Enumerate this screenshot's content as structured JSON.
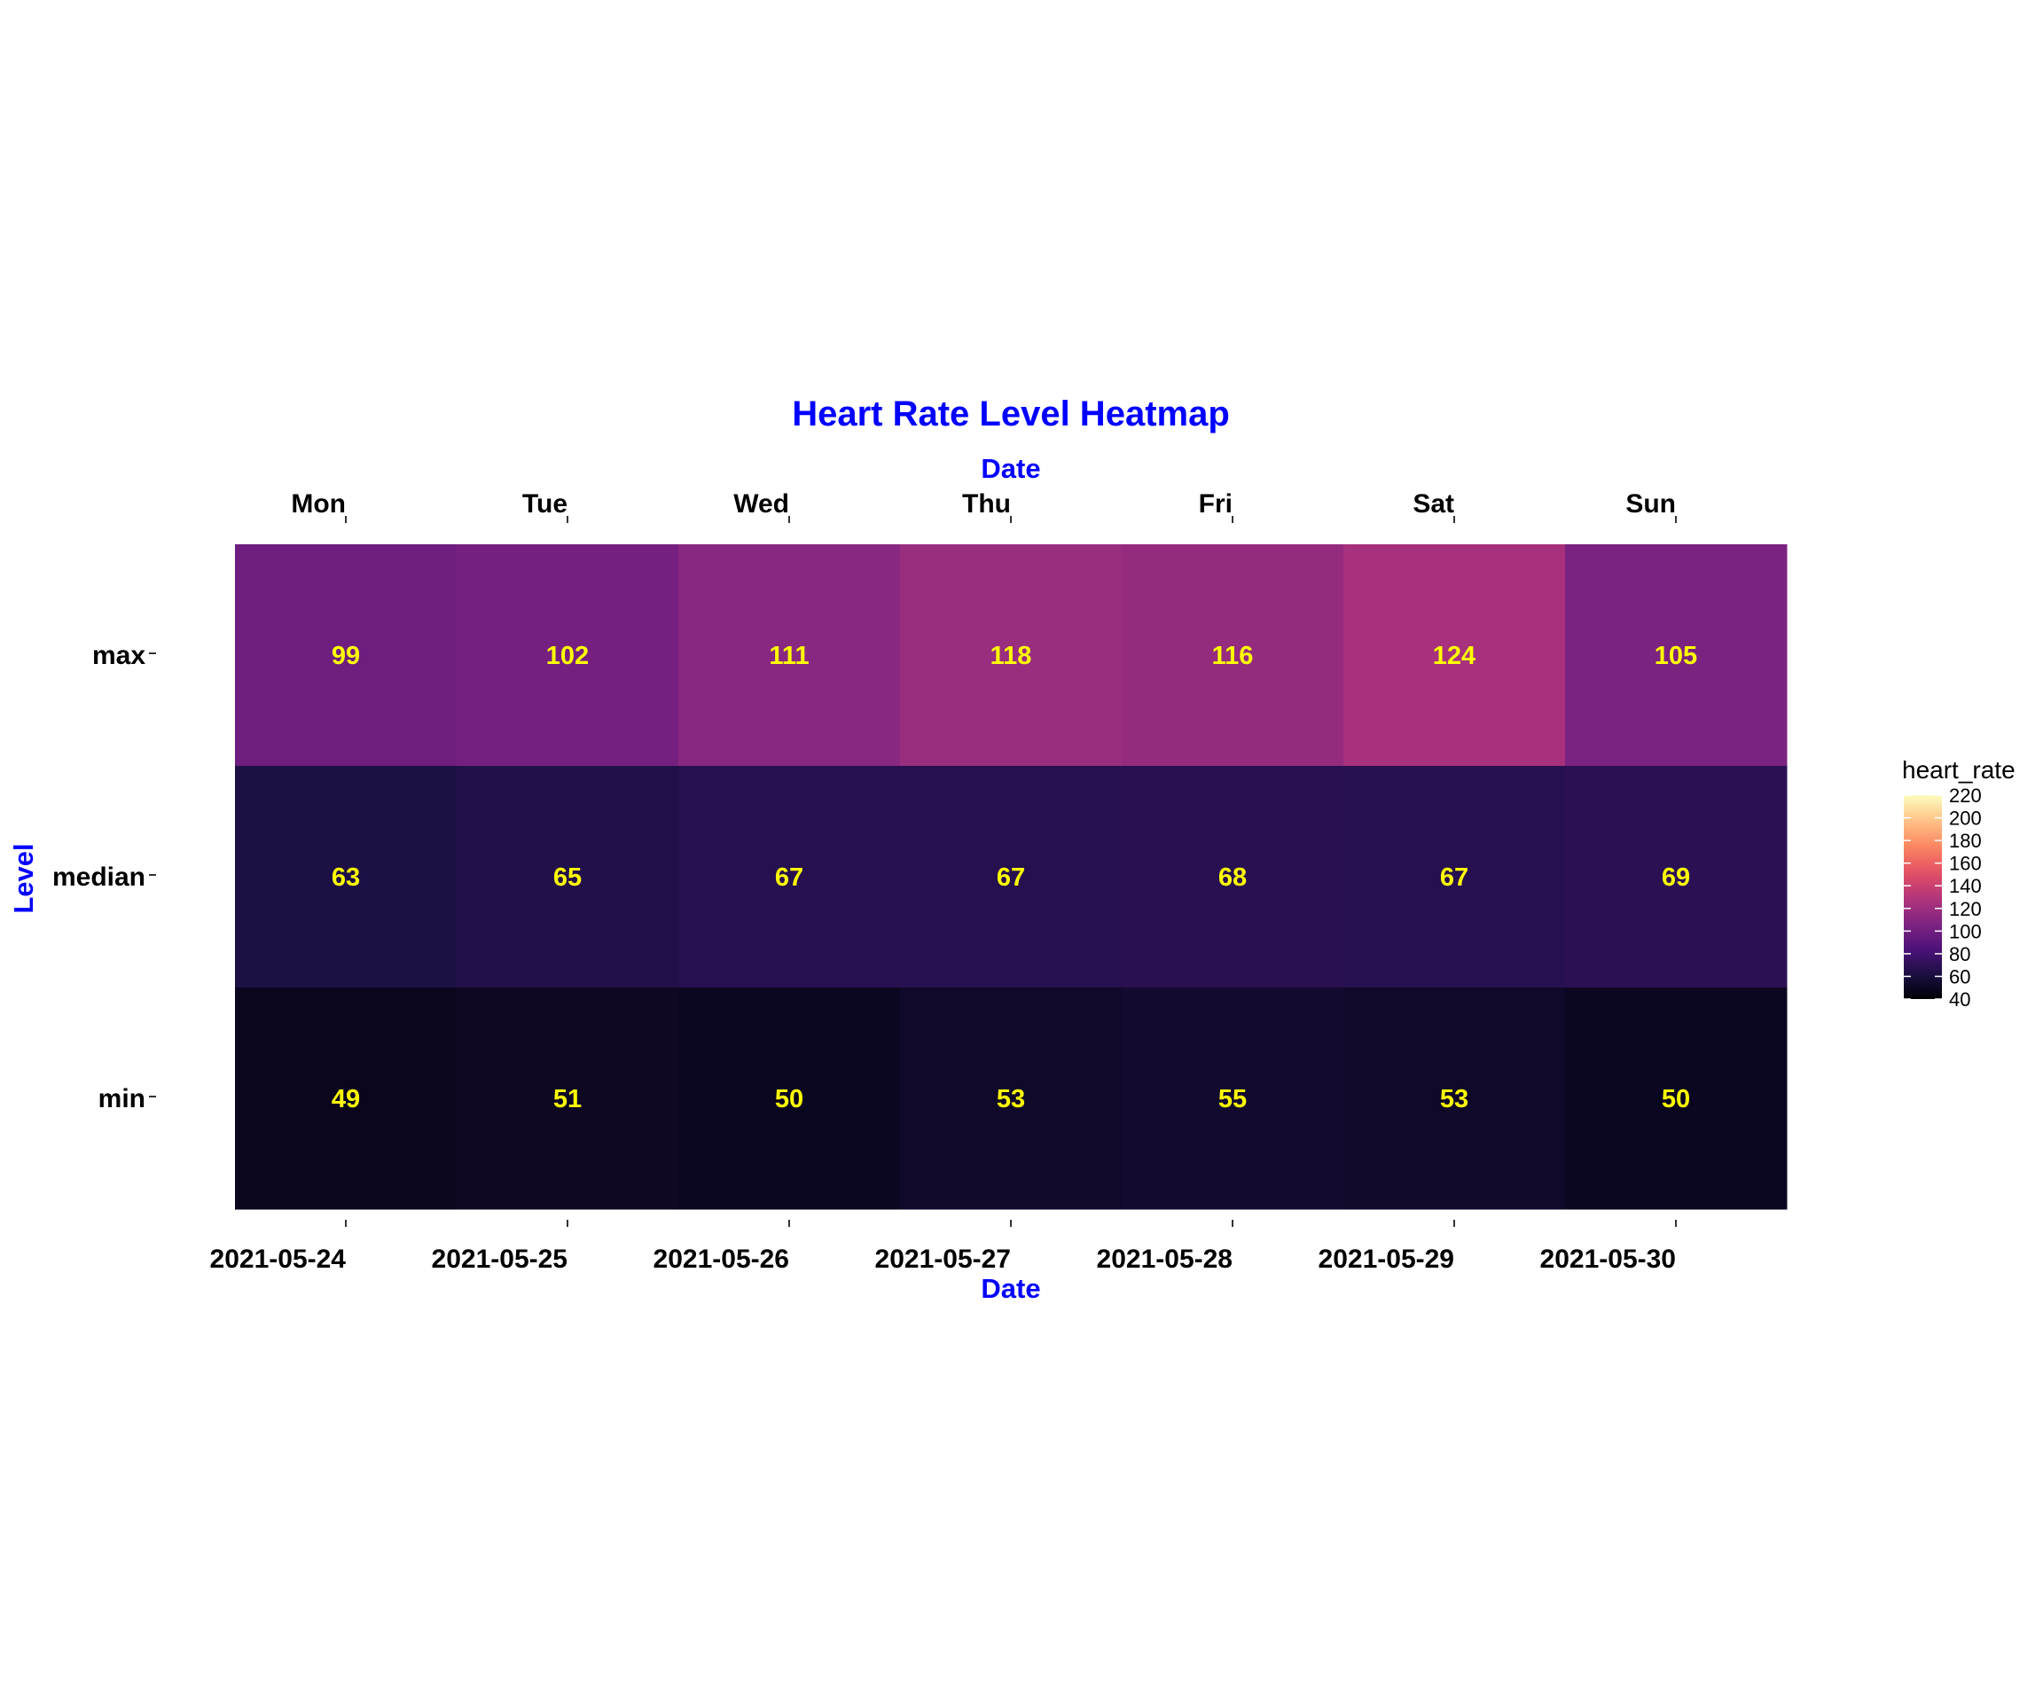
{
  "chart_data": {
    "type": "heatmap",
    "title": "Heart Rate Level Heatmap",
    "xlabel_top": "Date",
    "xlabel_bottom": "Date",
    "ylabel": "Level",
    "x_bottom": [
      "2021-05-24",
      "2021-05-25",
      "2021-05-26",
      "2021-05-27",
      "2021-05-28",
      "2021-05-29",
      "2021-05-30"
    ],
    "x_top": [
      "Mon",
      "Tue",
      "Wed",
      "Thu",
      "Fri",
      "Sat",
      "Sun"
    ],
    "y": [
      "max",
      "median",
      "min"
    ],
    "values": [
      [
        99,
        102,
        111,
        118,
        116,
        124,
        105
      ],
      [
        63,
        65,
        67,
        67,
        68,
        67,
        69
      ],
      [
        49,
        51,
        50,
        53,
        55,
        53,
        50
      ]
    ],
    "colorscale": "magma",
    "color_range": [
      40,
      220
    ],
    "legend": {
      "title": "heart_rate",
      "ticks": [
        220,
        200,
        180,
        160,
        140,
        120,
        100,
        80,
        60,
        40
      ],
      "position": "right"
    },
    "colors": {
      "title": "#0000ff",
      "axis_title": "#0000ff",
      "cell_text": "#ffff00"
    },
    "grid": false
  }
}
